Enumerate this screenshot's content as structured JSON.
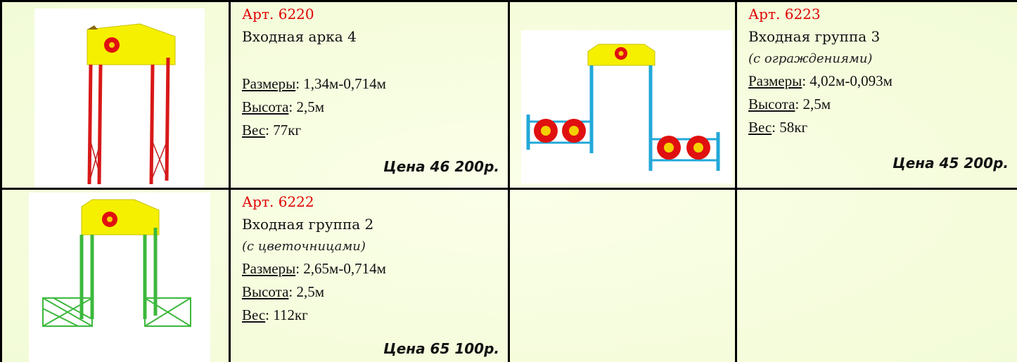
{
  "products": [
    {
      "article": "Арт. 6220",
      "name": "Входная арка 4",
      "specs": [
        {
          "label": "Размеры",
          "value": ": 1,34м-0,714м"
        },
        {
          "label": "Высота",
          "value": ": 2,5м"
        },
        {
          "label": "Вес",
          "value": ": 77кг"
        }
      ],
      "price": "Цена 46 200р."
    },
    {
      "article": "Арт. 6223",
      "name": "Входная группа 3",
      "note": "(с ограждениями)",
      "specs": [
        {
          "label": "Размеры",
          "value": ": 4,02м-0,093м"
        },
        {
          "label": "Высота",
          "value": ": 2,5м"
        },
        {
          "label": "Вес",
          "value": ": 58кг"
        }
      ],
      "price": "Цена 45 200р."
    },
    {
      "article": "Арт. 6222",
      "name": "Входная группа 2",
      "note": "(с цветочницами)",
      "specs": [
        {
          "label": "Размеры",
          "value": ": 2,65м-0,714м"
        },
        {
          "label": "Высота",
          "value": ": 2,5м"
        },
        {
          "label": "Вес",
          "value": ": 112кг"
        }
      ],
      "price": "Цена 65 100р."
    }
  ]
}
